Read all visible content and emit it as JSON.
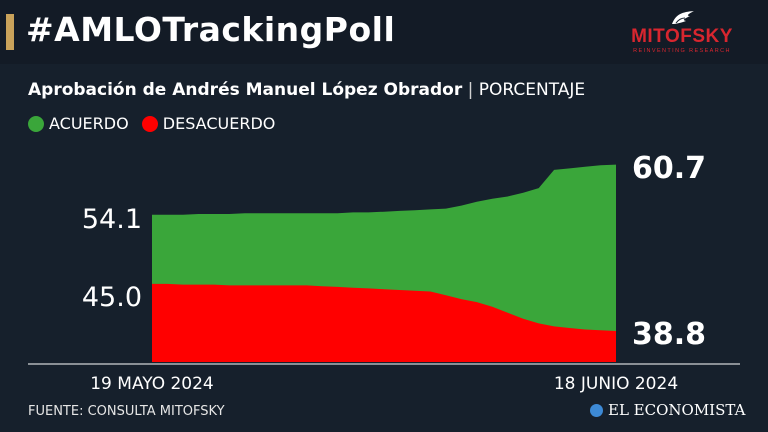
{
  "header": {
    "title": "#AMLOTrackingPoll",
    "logo_text": "MITOFSKY",
    "logo_tagline": "REINVENTING RESEARCH"
  },
  "subtitle": {
    "main": "Aprobación de Andrés Manuel López Obrador",
    "separator": "|",
    "unit": "PORCENTAJE"
  },
  "footer": {
    "source": "FUENTE: CONSULTA MITOFSKY",
    "brand": "EL ECONOMISTA"
  },
  "colors": {
    "background": "#16202c",
    "acuerdo": "#3aa63a",
    "desacuerdo": "#ff0000",
    "accent": "#c9a25a"
  },
  "chart_data": {
    "type": "area",
    "x_start_label": "19 MAYO 2024",
    "x_end_label": "18 JUNIO 2024",
    "x": [
      "2024-05-19",
      "2024-05-20",
      "2024-05-21",
      "2024-05-22",
      "2024-05-23",
      "2024-05-24",
      "2024-05-25",
      "2024-05-26",
      "2024-05-27",
      "2024-05-28",
      "2024-05-29",
      "2024-05-30",
      "2024-05-31",
      "2024-06-01",
      "2024-06-02",
      "2024-06-03",
      "2024-06-04",
      "2024-06-05",
      "2024-06-06",
      "2024-06-07",
      "2024-06-08",
      "2024-06-09",
      "2024-06-10",
      "2024-06-11",
      "2024-06-12",
      "2024-06-13",
      "2024-06-14",
      "2024-06-15",
      "2024-06-16",
      "2024-06-17",
      "2024-06-18"
    ],
    "series": [
      {
        "name": "ACUERDO",
        "values": [
          54.1,
          54.1,
          54.1,
          54.2,
          54.2,
          54.2,
          54.3,
          54.3,
          54.3,
          54.3,
          54.3,
          54.3,
          54.3,
          54.4,
          54.4,
          54.5,
          54.6,
          54.7,
          54.8,
          54.9,
          55.3,
          55.8,
          56.2,
          56.5,
          57.0,
          57.6,
          60.0,
          60.2,
          60.4,
          60.6,
          60.7
        ],
        "start_label": "54.1",
        "end_label": "60.7"
      },
      {
        "name": "DESACUERDO",
        "values": [
          45.0,
          45.0,
          44.9,
          44.9,
          44.9,
          44.8,
          44.8,
          44.8,
          44.8,
          44.8,
          44.8,
          44.7,
          44.6,
          44.5,
          44.4,
          44.3,
          44.2,
          44.1,
          44.0,
          43.5,
          43.0,
          42.6,
          42.0,
          41.2,
          40.4,
          39.8,
          39.4,
          39.2,
          39.0,
          38.9,
          38.8
        ],
        "start_label": "45.0",
        "end_label": "38.8"
      }
    ],
    "legend": "top-left",
    "grid": false
  }
}
